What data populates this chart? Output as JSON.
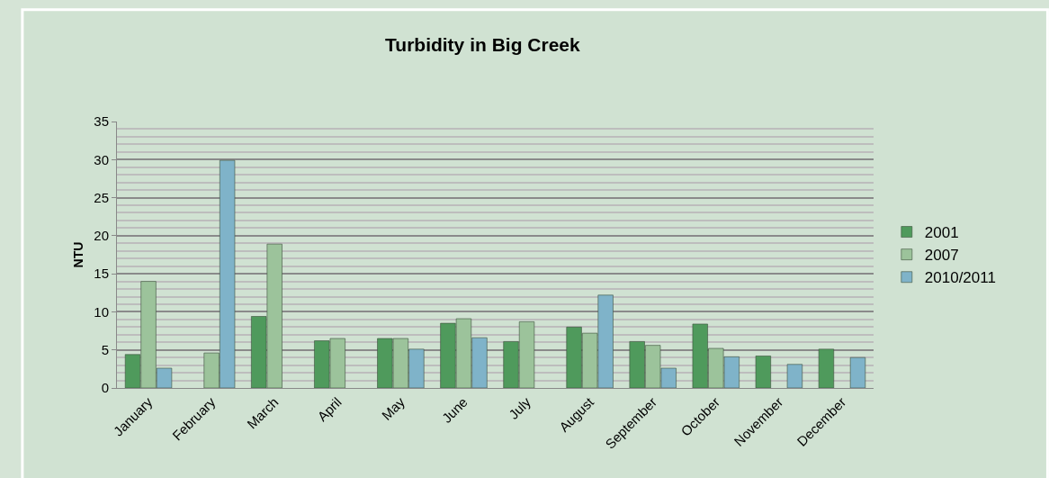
{
  "chart_data": {
    "type": "bar",
    "title": "Turbidity in Big Creek",
    "ylabel": "NTU",
    "categories": [
      "January",
      "February",
      "March",
      "April",
      "May",
      "June",
      "July",
      "August",
      "September",
      "October",
      "November",
      "December"
    ],
    "series": [
      {
        "name": "2001",
        "color": "#4f9a5c",
        "values": [
          4.4,
          null,
          9.4,
          6.2,
          6.5,
          8.5,
          6.1,
          8.0,
          6.1,
          8.4,
          4.2,
          5.1
        ]
      },
      {
        "name": "2007",
        "color": "#9cc39b",
        "values": [
          14.0,
          4.6,
          18.9,
          6.5,
          6.5,
          9.1,
          8.7,
          7.2,
          5.6,
          5.2,
          null,
          null
        ]
      },
      {
        "name": "2010/2011",
        "color": "#7fb3c9",
        "values": [
          2.6,
          29.9,
          null,
          null,
          5.1,
          6.6,
          null,
          12.2,
          2.6,
          4.1,
          3.1,
          4.0
        ]
      }
    ],
    "ylim": [
      0,
      35
    ],
    "yticks": [
      0,
      5,
      10,
      15,
      20,
      25,
      30,
      35
    ],
    "grid": "y",
    "legend": "right"
  }
}
